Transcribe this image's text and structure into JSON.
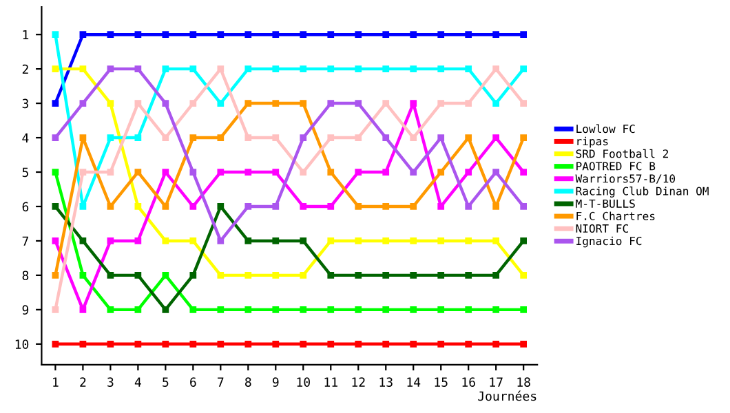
{
  "chart_data": {
    "type": "line",
    "xlabel": "Journées",
    "x": [
      1,
      2,
      3,
      4,
      5,
      6,
      7,
      8,
      9,
      10,
      11,
      12,
      13,
      14,
      15,
      16,
      17,
      18
    ],
    "xlim": [
      0.5,
      18.5
    ],
    "xticks": [
      1,
      2,
      3,
      4,
      5,
      6,
      7,
      8,
      9,
      10,
      11,
      12,
      13,
      14,
      15,
      16,
      17,
      18
    ],
    "ylim": [
      10.6,
      0.2
    ],
    "yticks": [
      1,
      2,
      3,
      4,
      5,
      6,
      7,
      8,
      9,
      10
    ],
    "grid": false,
    "legend": "right",
    "marker": "square",
    "line_style": "solid",
    "series": [
      {
        "name": "Lowlow FC",
        "color": "#0000ff",
        "values": [
          3,
          1,
          1,
          1,
          1,
          1,
          1,
          1,
          1,
          1,
          1,
          1,
          1,
          1,
          1,
          1,
          1,
          1
        ]
      },
      {
        "name": "ripas",
        "color": "#ff0000",
        "values": [
          10,
          10,
          10,
          10,
          10,
          10,
          10,
          10,
          10,
          10,
          10,
          10,
          10,
          10,
          10,
          10,
          10,
          10
        ]
      },
      {
        "name": "SRD Football 2",
        "color": "#ffff00",
        "values": [
          2,
          2,
          3,
          6,
          7,
          7,
          8,
          8,
          8,
          8,
          7,
          7,
          7,
          7,
          7,
          7,
          7,
          8
        ]
      },
      {
        "name": "PAOTRED FC B",
        "color": "#00ff00",
        "values": [
          5,
          8,
          9,
          9,
          8,
          9,
          9,
          9,
          9,
          9,
          9,
          9,
          9,
          9,
          9,
          9,
          9,
          9
        ]
      },
      {
        "name": "Warriors57-B/10",
        "color": "#ff00ff",
        "values": [
          7,
          9,
          7,
          7,
          5,
          6,
          5,
          5,
          5,
          6,
          6,
          5,
          5,
          3,
          6,
          5,
          4,
          5
        ]
      },
      {
        "name": "Racing Club Dinan OM",
        "color": "#00ffff",
        "values": [
          1,
          6,
          4,
          4,
          2,
          2,
          3,
          2,
          2,
          2,
          2,
          2,
          2,
          2,
          2,
          2,
          3,
          2
        ]
      },
      {
        "name": "M-T-BULLS",
        "color": "#006400",
        "values": [
          6,
          7,
          8,
          8,
          9,
          8,
          6,
          7,
          7,
          7,
          8,
          8,
          8,
          8,
          8,
          8,
          8,
          7
        ]
      },
      {
        "name": "F.C Chartres",
        "color": "#ff9900",
        "values": [
          8,
          4,
          6,
          5,
          6,
          4,
          4,
          3,
          3,
          3,
          5,
          6,
          6,
          6,
          5,
          4,
          6,
          4
        ]
      },
      {
        "name": "NIORT FC",
        "color": "#ffc0c0",
        "values": [
          9,
          5,
          5,
          3,
          4,
          3,
          2,
          4,
          4,
          5,
          4,
          4,
          3,
          4,
          3,
          3,
          2,
          3
        ]
      },
      {
        "name": "Ignacio FC",
        "color": "#aa55ee",
        "values": [
          4,
          3,
          2,
          2,
          3,
          5,
          7,
          6,
          6,
          4,
          3,
          3,
          4,
          5,
          4,
          6,
          5,
          6
        ]
      }
    ]
  }
}
